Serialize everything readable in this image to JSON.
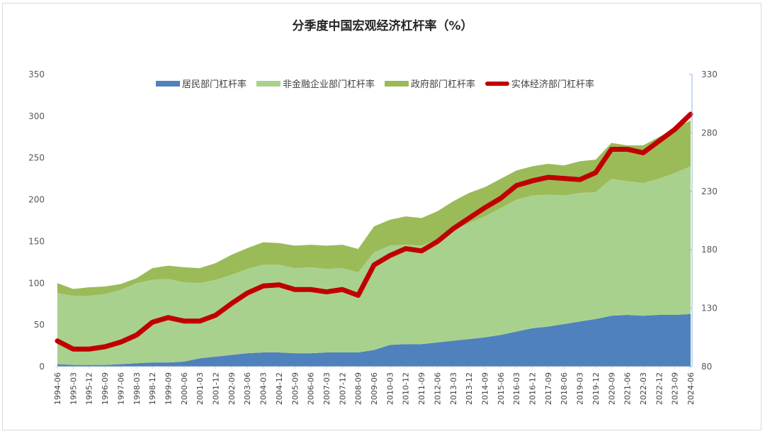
{
  "chart_data": {
    "type": "area",
    "title": "分季度中国宏观经济杠杆率（%）",
    "xlabel": "",
    "ylabel": "",
    "ylim": [
      0,
      350
    ],
    "y_ticks": [
      0,
      50,
      100,
      150,
      200,
      250,
      300,
      350
    ],
    "y2lim": [
      80,
      330
    ],
    "y2_ticks": [
      80,
      130,
      180,
      230,
      280,
      330
    ],
    "legend_position": "top",
    "grid": false,
    "categories": [
      "1994-06",
      "1995-03",
      "1995-12",
      "1996-09",
      "1997-06",
      "1998-03",
      "1998-12",
      "1999-09",
      "2000-06",
      "2001-03",
      "2001-12",
      "2002-09",
      "2003-06",
      "2004-03",
      "2004-12",
      "2005-09",
      "2006-06",
      "2007-03",
      "2007-12",
      "2008-09",
      "2009-06",
      "2010-03",
      "2010-12",
      "2011-09",
      "2012-06",
      "2013-03",
      "2013-12",
      "2014-09",
      "2015-06",
      "2016-03",
      "2016-12",
      "2017-09",
      "2018-06",
      "2019-03",
      "2019-12",
      "2020-09",
      "2021-06",
      "2022-03",
      "2022-12",
      "2023-09",
      "2024-06"
    ],
    "series": [
      {
        "name": "居民部门杠杆率",
        "type": "stacked-area",
        "axis": "left",
        "color": "#4f81bd",
        "values": [
          3,
          2,
          2,
          2,
          3,
          4,
          5,
          5,
          6,
          10,
          12,
          14,
          16,
          17,
          17,
          16,
          16,
          17,
          17,
          17,
          20,
          26,
          27,
          27,
          29,
          31,
          33,
          35,
          38,
          42,
          46,
          48,
          51,
          54,
          57,
          61,
          62,
          61,
          62,
          62,
          63
        ]
      },
      {
        "name": "非金融企业部门杠杆率",
        "type": "stacked-area",
        "axis": "left",
        "color": "#a9d18e",
        "values": [
          85,
          83,
          83,
          85,
          89,
          96,
          99,
          100,
          95,
          90,
          92,
          96,
          101,
          105,
          105,
          102,
          103,
          100,
          101,
          96,
          117,
          119,
          119,
          118,
          123,
          132,
          139,
          145,
          152,
          158,
          159,
          158,
          154,
          154,
          152,
          164,
          160,
          159,
          163,
          170,
          177
        ]
      },
      {
        "name": "政府部门杠杆率",
        "type": "stacked-area",
        "axis": "left",
        "color": "#9bbb59",
        "values": [
          12,
          8,
          10,
          9,
          7,
          6,
          14,
          16,
          18,
          18,
          20,
          24,
          25,
          27,
          26,
          27,
          27,
          28,
          28,
          28,
          31,
          31,
          34,
          33,
          34,
          35,
          36,
          35,
          35,
          35,
          35,
          37,
          36,
          38,
          39,
          43,
          43,
          45,
          50,
          53,
          55
        ]
      },
      {
        "name": "实体经济部门杠杆率",
        "type": "line",
        "axis": "right",
        "color": "#c00000",
        "values": [
          102,
          95,
          95,
          97,
          101,
          107,
          118,
          122,
          119,
          119,
          124,
          134,
          143,
          149,
          150,
          146,
          146,
          144,
          146,
          141,
          167,
          175,
          181,
          179,
          187,
          198,
          207,
          216,
          224,
          235,
          239,
          242,
          241,
          240,
          246,
          266,
          266,
          263,
          273,
          283,
          296
        ]
      }
    ]
  },
  "legend": {
    "items": [
      {
        "label": "居民部门杠杆率",
        "color": "#4f81bd",
        "kind": "area"
      },
      {
        "label": "非金融企业部门杠杆率",
        "color": "#a9d18e",
        "kind": "area"
      },
      {
        "label": "政府部门杠杆率",
        "color": "#9bbb59",
        "kind": "area"
      },
      {
        "label": "实体经济部门杠杆率",
        "color": "#c00000",
        "kind": "line"
      }
    ]
  }
}
